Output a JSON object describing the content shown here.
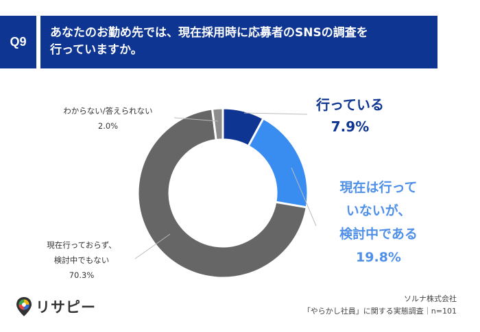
{
  "header": {
    "badge": "Q9",
    "title_line1": "あなたのお勤め先では、現在採用時に応募者のSNSの調査を",
    "title_line2": "行っていますか。"
  },
  "chart_data": {
    "type": "pie",
    "categories": [
      "行っている",
      "現在は行っていないが、検討中である",
      "現在行っておらず、検討中でもない",
      "わからない/答えられない"
    ],
    "values": [
      7.9,
      19.8,
      70.3,
      2.0
    ],
    "unit": "%",
    "colors": [
      "#0d3591",
      "#3a8df0",
      "#666666",
      "#8c8c8c"
    ]
  },
  "labels": {
    "doing_name": "行っている",
    "doing_value": "7.9%",
    "considering_line1": "現在は行って",
    "considering_line2": "いないが、",
    "considering_line3": "検討中である",
    "considering_value": "19.8%",
    "not_line1": "現在行っておらず、",
    "not_line2": "検討中でもない",
    "not_value": "70.3%",
    "unknown_name": "わからない/答えられない",
    "unknown_value": "2.0%"
  },
  "logo": {
    "text": "リサピー"
  },
  "source": {
    "line1": "ソルナ株式会社",
    "line2": "「やらかし社員」に関する実態調査｜n=101"
  }
}
